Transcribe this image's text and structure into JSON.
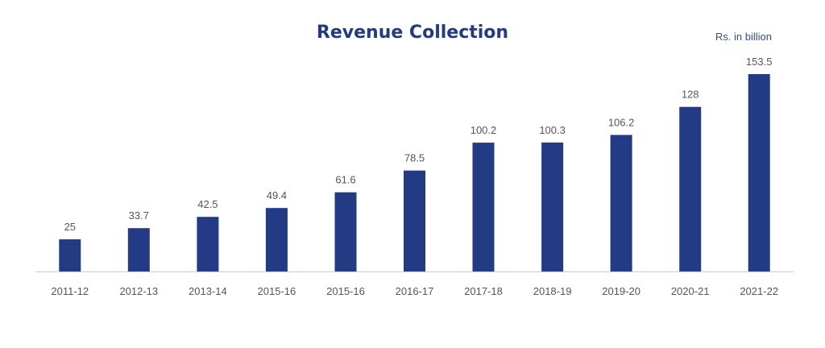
{
  "colors": {
    "bar": "#233a84",
    "axis": "#cccccc",
    "title": "#233a84",
    "text": "#555555"
  },
  "chart_data": {
    "type": "bar",
    "title": "Revenue Collection",
    "unit": "Rs. in billion",
    "xlabel": "",
    "ylabel": "",
    "categories": [
      "2011-12",
      "2012-13",
      "2013-14",
      "2015-16",
      "2015-16",
      "2016-17",
      "2017-18",
      "2018-19",
      "2019-20",
      "2020-21",
      "2021-22"
    ],
    "values": [
      25,
      33.7,
      42.5,
      49.4,
      61.6,
      78.5,
      100.2,
      100.3,
      106.2,
      128,
      153.5
    ],
    "value_labels": [
      "25",
      "33.7",
      "42.5",
      "49.4",
      "61.6",
      "78.5",
      "100.2",
      "100.3",
      "106.2",
      "128",
      "153.5"
    ],
    "ylim": [
      0,
      153.5
    ],
    "grid": false,
    "legend": "none"
  }
}
